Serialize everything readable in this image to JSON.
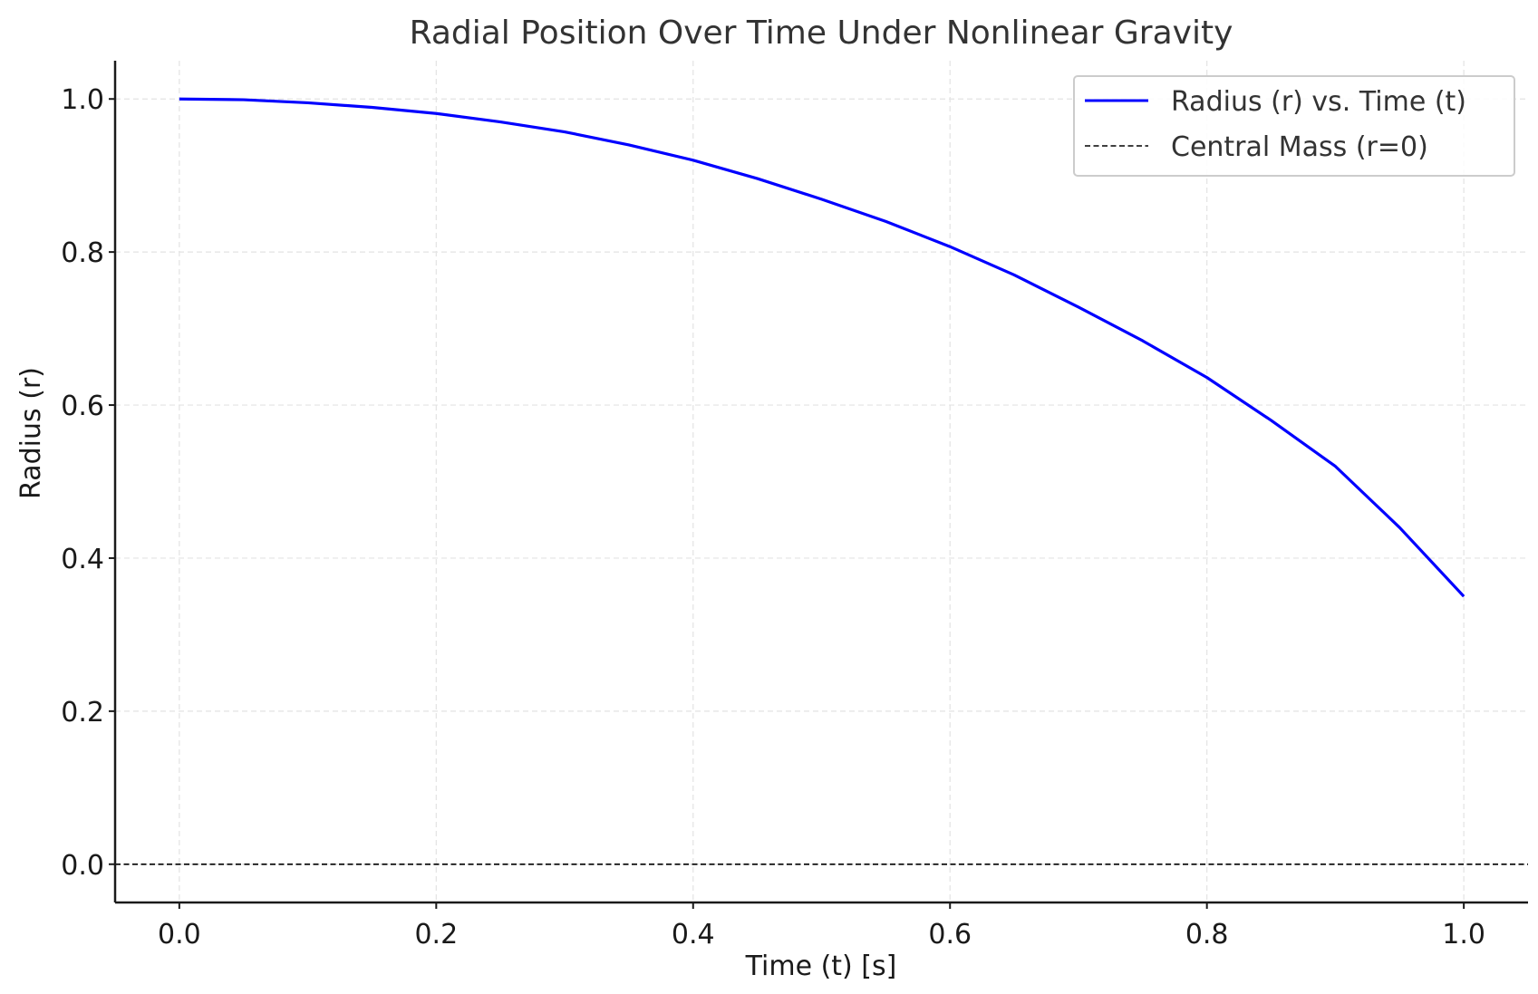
{
  "chart_data": {
    "type": "line",
    "title": "Radial Position Over Time Under Nonlinear Gravity",
    "xlabel": "Time (t) [s]",
    "ylabel": "Radius (r)",
    "xlim": [
      -0.05,
      1.05
    ],
    "ylim": [
      -0.05,
      1.05
    ],
    "xticks": [
      0.0,
      0.2,
      0.4,
      0.6,
      0.8,
      1.0
    ],
    "xtick_labels": [
      "0.0",
      "0.2",
      "0.4",
      "0.6",
      "0.8",
      "1.0"
    ],
    "yticks": [
      0.0,
      0.2,
      0.4,
      0.6,
      0.8,
      1.0
    ],
    "ytick_labels": [
      "0.0",
      "0.2",
      "0.4",
      "0.6",
      "0.8",
      "1.0"
    ],
    "grid": true,
    "legend_position": "top-right",
    "series": [
      {
        "name": "Radius (r) vs. Time (t)",
        "color": "#0000ff",
        "style": "solid",
        "x": [
          0.0,
          0.05,
          0.1,
          0.15,
          0.2,
          0.25,
          0.3,
          0.35,
          0.4,
          0.45,
          0.5,
          0.55,
          0.6,
          0.65,
          0.7,
          0.75,
          0.8,
          0.85,
          0.9,
          0.95,
          1.0
        ],
        "y": [
          1.0,
          0.999,
          0.995,
          0.989,
          0.981,
          0.97,
          0.957,
          0.94,
          0.92,
          0.896,
          0.869,
          0.84,
          0.807,
          0.77,
          0.728,
          0.684,
          0.636,
          0.58,
          0.52,
          0.44,
          0.35
        ]
      },
      {
        "name": "Central Mass (r=0)",
        "color": "#000000",
        "style": "dashed",
        "hline": 0.0
      }
    ]
  }
}
